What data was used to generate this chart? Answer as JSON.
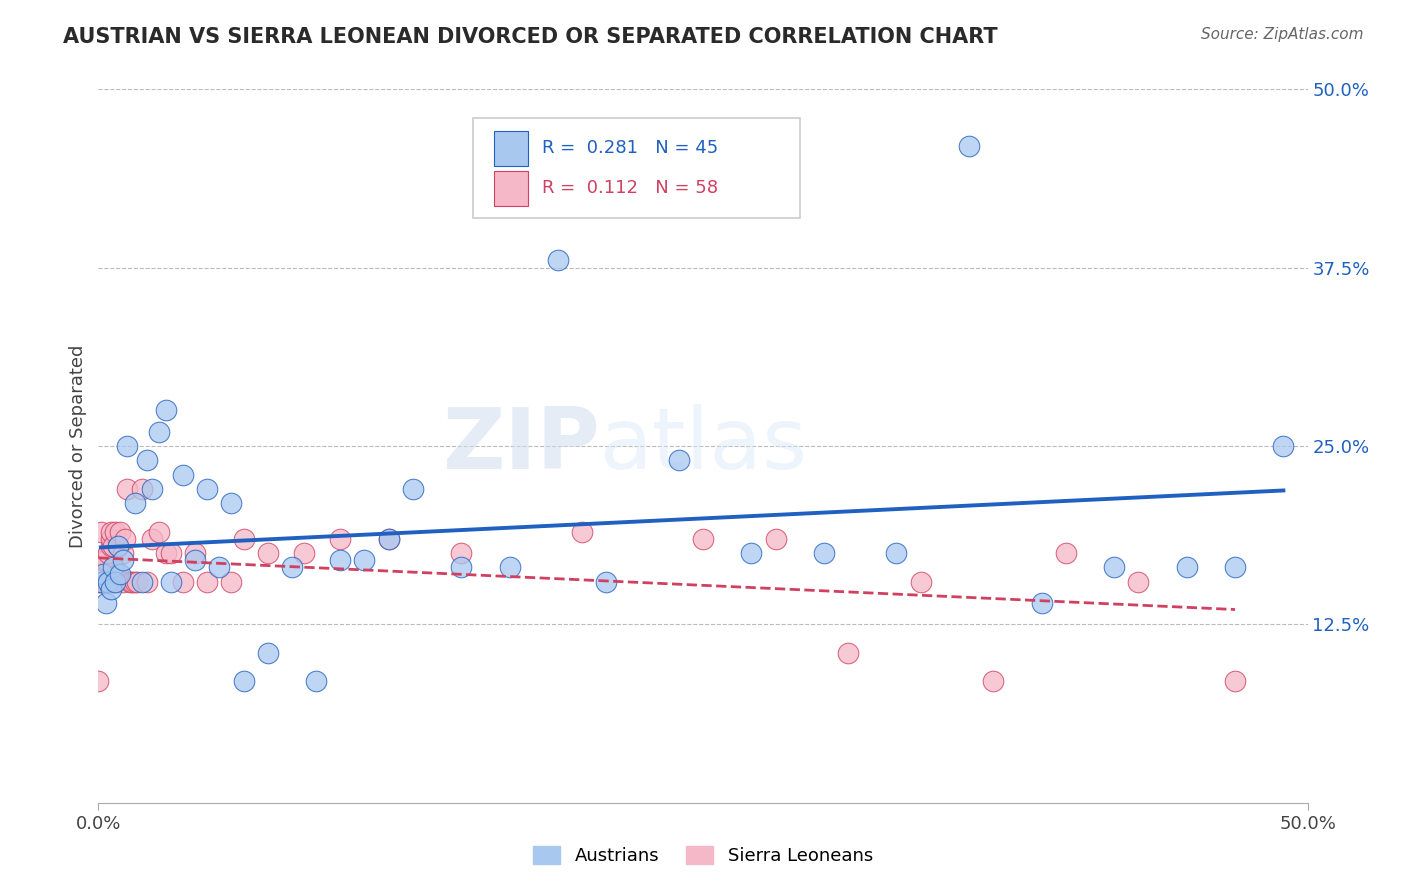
{
  "title": "AUSTRIAN VS SIERRA LEONEAN DIVORCED OR SEPARATED CORRELATION CHART",
  "source": "Source: ZipAtlas.com",
  "ylabel": "Divorced or Separated",
  "legend_labels": [
    "Austrians",
    "Sierra Leoneans"
  ],
  "r_austrians": 0.281,
  "n_austrians": 45,
  "r_sierra": 0.112,
  "n_sierra": 58,
  "xlim": [
    0.0,
    0.5
  ],
  "ylim": [
    0.0,
    0.5
  ],
  "color_austrians": "#a8c8f0",
  "color_sierra": "#f5b8c8",
  "trendline_austrians": "#2060c0",
  "trendline_sierra": "#d04060",
  "background_color": "#ffffff",
  "watermark": "ZIPatlas",
  "austrians_x": [
    0.001,
    0.002,
    0.003,
    0.004,
    0.005,
    0.006,
    0.007,
    0.008,
    0.009,
    0.01,
    0.012,
    0.015,
    0.018,
    0.02,
    0.022,
    0.025,
    0.028,
    0.03,
    0.035,
    0.04,
    0.045,
    0.05,
    0.055,
    0.06,
    0.07,
    0.08,
    0.09,
    0.1,
    0.11,
    0.12,
    0.13,
    0.15,
    0.17,
    0.19,
    0.21,
    0.24,
    0.27,
    0.3,
    0.33,
    0.36,
    0.39,
    0.42,
    0.45,
    0.47,
    0.49
  ],
  "austrians_y": [
    0.155,
    0.16,
    0.14,
    0.155,
    0.15,
    0.165,
    0.155,
    0.18,
    0.16,
    0.17,
    0.25,
    0.21,
    0.155,
    0.24,
    0.22,
    0.26,
    0.275,
    0.155,
    0.23,
    0.17,
    0.22,
    0.165,
    0.21,
    0.085,
    0.105,
    0.165,
    0.085,
    0.17,
    0.17,
    0.185,
    0.22,
    0.165,
    0.165,
    0.38,
    0.155,
    0.24,
    0.175,
    0.175,
    0.175,
    0.46,
    0.14,
    0.165,
    0.165,
    0.165,
    0.25
  ],
  "sierra_x": [
    0.0,
    0.0,
    0.0,
    0.0,
    0.001,
    0.001,
    0.001,
    0.001,
    0.002,
    0.002,
    0.002,
    0.003,
    0.003,
    0.004,
    0.004,
    0.005,
    0.005,
    0.005,
    0.006,
    0.006,
    0.007,
    0.007,
    0.008,
    0.008,
    0.009,
    0.01,
    0.01,
    0.011,
    0.012,
    0.013,
    0.014,
    0.015,
    0.016,
    0.018,
    0.02,
    0.022,
    0.025,
    0.028,
    0.03,
    0.035,
    0.04,
    0.045,
    0.055,
    0.06,
    0.07,
    0.085,
    0.1,
    0.12,
    0.15,
    0.2,
    0.25,
    0.28,
    0.31,
    0.34,
    0.37,
    0.4,
    0.43,
    0.47
  ],
  "sierra_y": [
    0.155,
    0.16,
    0.165,
    0.085,
    0.155,
    0.16,
    0.165,
    0.19,
    0.155,
    0.16,
    0.17,
    0.155,
    0.17,
    0.155,
    0.175,
    0.18,
    0.185,
    0.19,
    0.155,
    0.18,
    0.155,
    0.19,
    0.16,
    0.18,
    0.19,
    0.155,
    0.175,
    0.185,
    0.22,
    0.155,
    0.155,
    0.155,
    0.155,
    0.22,
    0.155,
    0.185,
    0.19,
    0.175,
    0.175,
    0.155,
    0.175,
    0.155,
    0.155,
    0.185,
    0.175,
    0.175,
    0.185,
    0.185,
    0.175,
    0.19,
    0.185,
    0.185,
    0.105,
    0.155,
    0.085,
    0.175,
    0.155,
    0.085
  ]
}
